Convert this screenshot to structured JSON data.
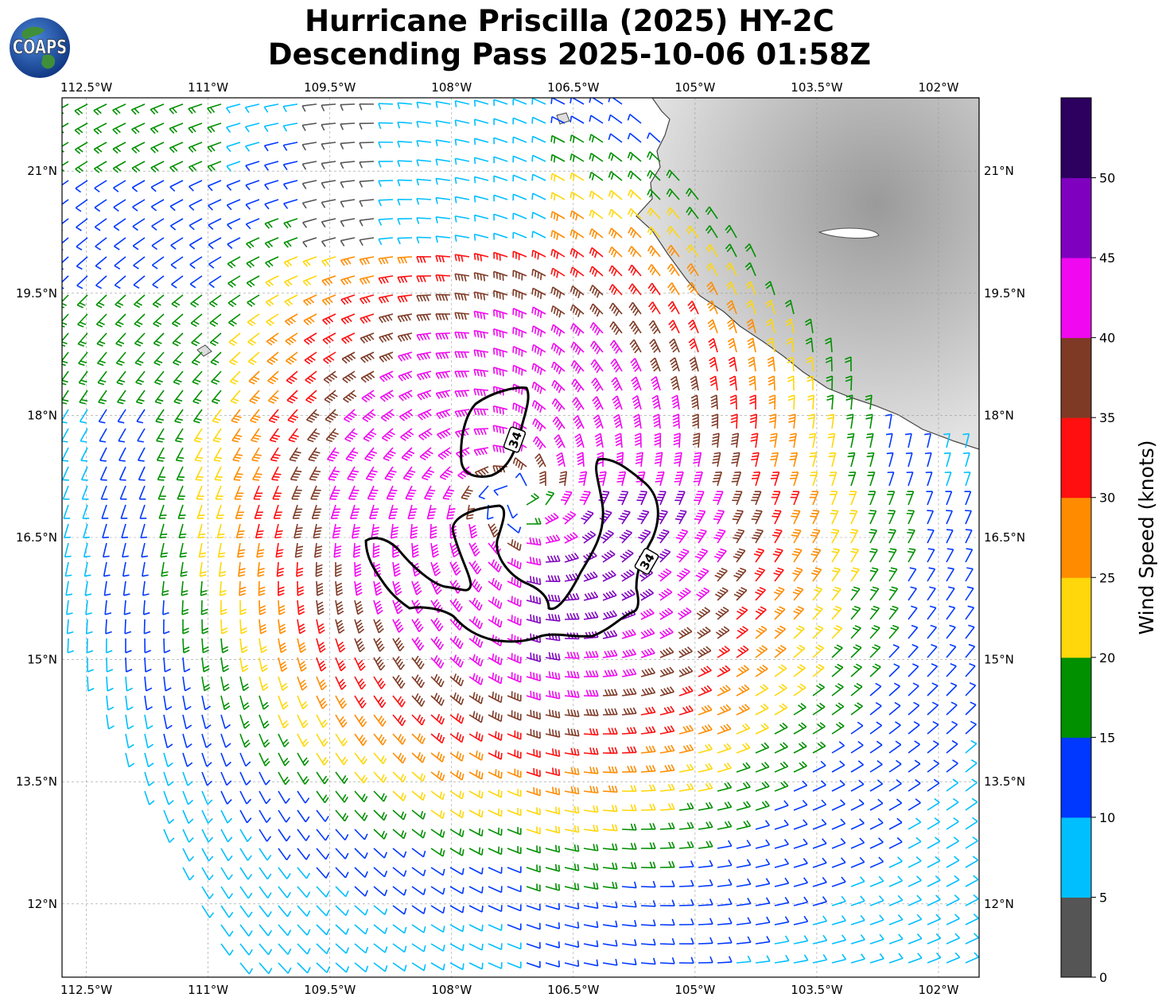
{
  "title": {
    "line1": "Hurricane Priscilla (2025) HY-2C",
    "line2": "Descending Pass 2025-10-06 01:58Z"
  },
  "logo": {
    "text": "COAPS",
    "icon": "globe-logo-icon"
  },
  "map": {
    "lon_range": [
      -112.8,
      -101.5
    ],
    "lat_range": [
      11.1,
      21.9
    ],
    "top_lon_labels": [
      "112.5°W",
      "111°W",
      "109.5°W",
      "108°W",
      "106.5°W",
      "105°W",
      "103.5°W",
      "102°W"
    ],
    "bottom_lon_labels": [
      "112.5°W",
      "111°W",
      "109.5°W",
      "108°W",
      "106.5°W",
      "105°W",
      "103.5°W",
      "102°W"
    ],
    "lon_values": [
      -112.5,
      -111,
      -109.5,
      -108,
      -106.5,
      -105,
      -103.5,
      -102
    ],
    "left_lat_labels": [
      "21°N",
      "19.5°N",
      "18°N",
      "16.5°N",
      "15°N",
      "13.5°N",
      "12°N"
    ],
    "right_lat_labels": [
      "21°N",
      "19.5°N",
      "18°N",
      "16.5°N",
      "15°N",
      "13.5°N",
      "12°N"
    ],
    "lat_values": [
      21,
      19.5,
      18,
      16.5,
      15,
      13.5,
      12
    ],
    "storm_center": {
      "lon": -107.2,
      "lat": 17.0
    },
    "contour_labels": [
      "34",
      "34"
    ],
    "land_color": "#b8b8b8",
    "gridlines": true
  },
  "colorbar": {
    "label": "Wind Speed (knots)",
    "ticks": [
      "0",
      "5",
      "10",
      "15",
      "20",
      "25",
      "30",
      "35",
      "40",
      "45",
      "50"
    ],
    "colors": [
      "#555555",
      "#00bfff",
      "#0038ff",
      "#009000",
      "#ffd70a",
      "#ff8c00",
      "#ff0f0f",
      "#7f3a26",
      "#f008f0",
      "#8000c0",
      "#2d005f"
    ]
  }
}
